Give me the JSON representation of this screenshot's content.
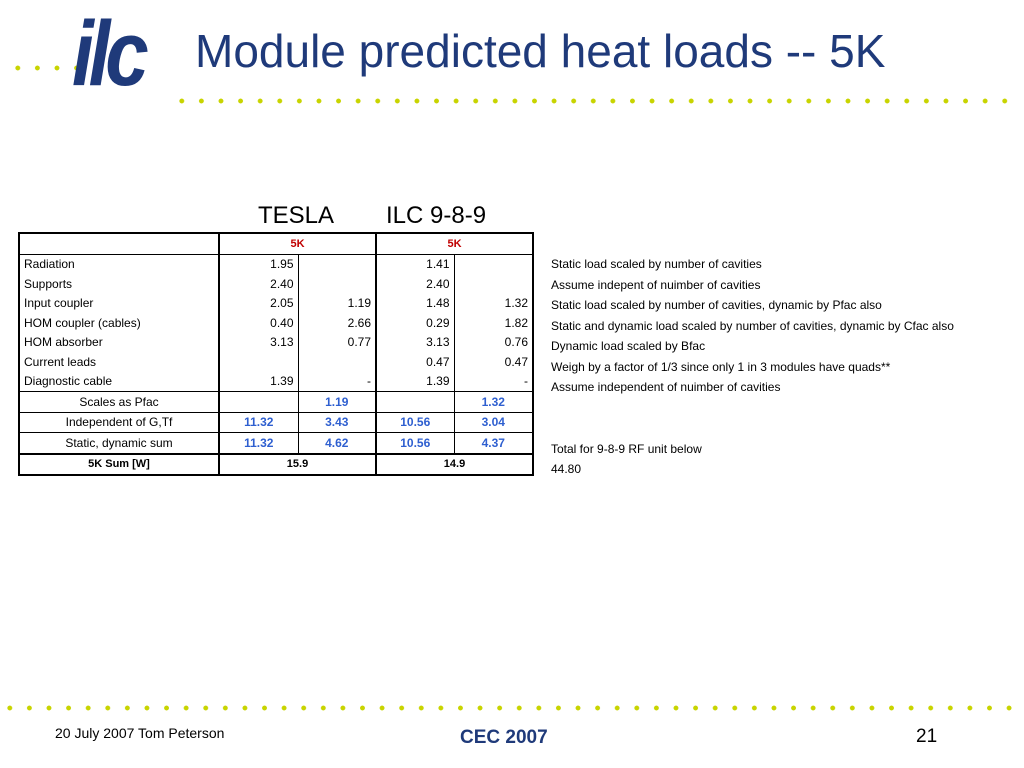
{
  "header": {
    "logo": "ilc",
    "title": "Module predicted heat loads -- 5K"
  },
  "table": {
    "columns": [
      "TESLA",
      "ILC 9-8-9"
    ],
    "subheaders": [
      "5K",
      "5K"
    ],
    "rows": [
      {
        "label": "Radiation",
        "cells": [
          "1.95",
          null,
          "1.41",
          null
        ],
        "note": "Static load scaled by number of cavities"
      },
      {
        "label": "Supports",
        "cells": [
          "2.40",
          null,
          "2.40",
          null
        ],
        "note": "Assume indepent of nuimber of cavities"
      },
      {
        "label": "Input coupler",
        "cells": [
          "2.05",
          "1.19",
          "1.48",
          "1.32"
        ],
        "note": "Static load scaled by number of cavities, dynamic by Pfac also"
      },
      {
        "label": "HOM coupler (cables)",
        "cells": [
          "0.40",
          "2.66",
          "0.29",
          "1.82"
        ],
        "note": "Static and dynamic load scaled by number of cavities, dynamic by Cfac also"
      },
      {
        "label": "HOM absorber",
        "cells": [
          "3.13",
          "0.77",
          "3.13",
          "0.76"
        ],
        "note": "Dynamic load scaled by Bfac"
      },
      {
        "label": "Current leads",
        "cells": [
          null,
          null,
          "0.47",
          "0.47"
        ],
        "note": "Weigh by a factor of 1/3 since only 1 in 3 modules have quads**"
      },
      {
        "label": "Diagnostic cable",
        "cells": [
          "1.39",
          "-",
          "1.39",
          "-"
        ],
        "note": "Assume independent of nuimber of cavities"
      },
      {
        "label": "Scales as Pfac",
        "cells": [
          null,
          "1.19",
          null,
          "1.32"
        ],
        "note": null
      },
      {
        "label": "Independent of G,Tf",
        "cells": [
          "11.32",
          "3.43",
          "10.56",
          "3.04"
        ],
        "note": null
      },
      {
        "label": "Static, dynamic sum",
        "cells": [
          "11.32",
          "4.62",
          "10.56",
          "4.37"
        ],
        "note": "Total for 9-8-9 RF unit below"
      },
      {
        "label": "5K Sum [W]",
        "cells": [
          "15.9",
          "14.9"
        ],
        "note": "44.80"
      }
    ]
  },
  "footer": {
    "left": "20 July 2007  Tom Peterson",
    "center": "CEC 2007",
    "page": "21"
  }
}
